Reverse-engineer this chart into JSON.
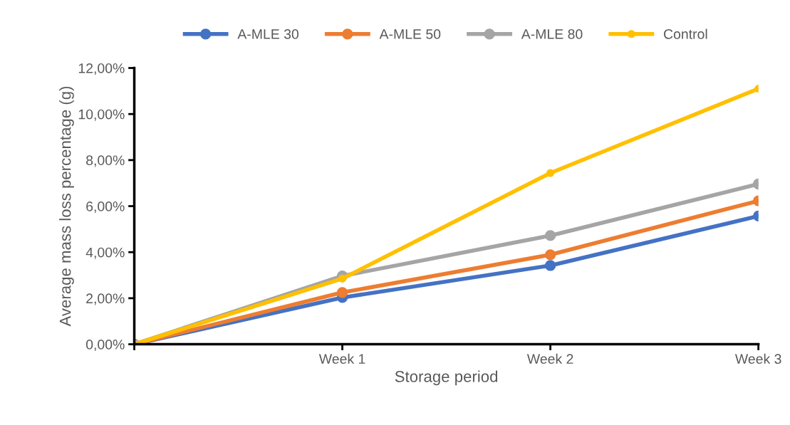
{
  "chart_data": {
    "type": "line",
    "xlabel": "Storage period",
    "ylabel": "Average mass loss percentage (g)",
    "categories": [
      null,
      "Week 1",
      "Week 2",
      "Week 3"
    ],
    "series": [
      {
        "name": "A-MLE 30",
        "color": "#4472c4",
        "values": [
          0,
          2.03,
          3.42,
          5.57
        ]
      },
      {
        "name": "A-MLE 50",
        "color": "#ed7d31",
        "values": [
          0,
          2.25,
          3.89,
          6.23
        ]
      },
      {
        "name": "A-MLE 80",
        "color": "#a5a5a5",
        "values": [
          0,
          2.97,
          4.72,
          6.96
        ]
      },
      {
        "name": "Control",
        "color": "#ffc000",
        "values": [
          0,
          2.85,
          7.44,
          11.1
        ]
      }
    ],
    "ylim": [
      0,
      12
    ],
    "yticks": [
      {
        "value": 0,
        "label": "0,00%"
      },
      {
        "value": 2,
        "label": "2,00%"
      },
      {
        "value": 4,
        "label": "4,00%"
      },
      {
        "value": 6,
        "label": "6,00%"
      },
      {
        "value": 8,
        "label": "8,00%"
      },
      {
        "value": 10,
        "label": "10,00%"
      },
      {
        "value": 12,
        "label": "12,00%"
      }
    ],
    "grid": false,
    "legend": "top",
    "marker": "circle",
    "line_style": "solid"
  }
}
